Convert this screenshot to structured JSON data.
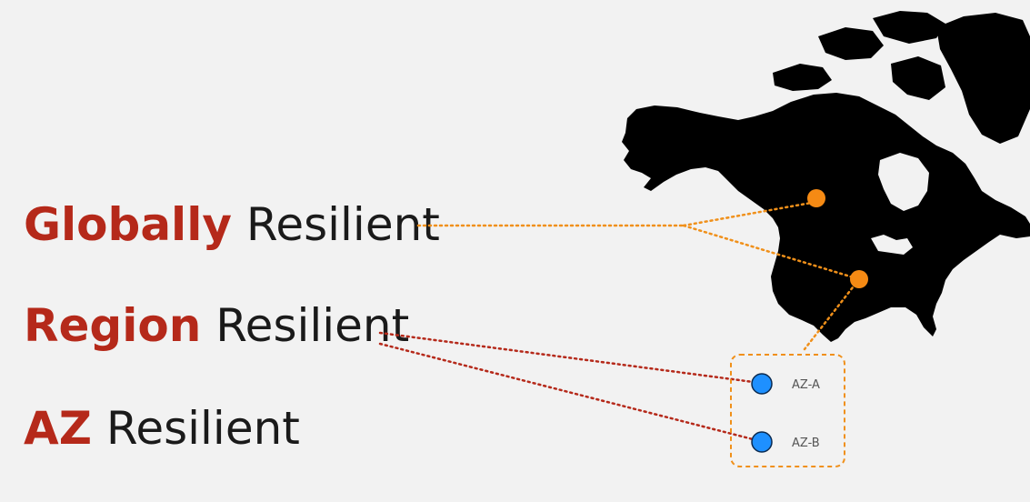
{
  "labels": {
    "global": {
      "bold": "Globally",
      "rest": " Resilient"
    },
    "region": {
      "bold": "Region",
      "rest": " Resilient"
    },
    "az": {
      "bold": "AZ",
      "rest": " Resilient"
    }
  },
  "az_box": {
    "zones": [
      "AZ-A",
      "AZ-B"
    ]
  },
  "colors": {
    "accent_red": "#b5291a",
    "connector_orange": "#f0901a",
    "region_dot": "#f58a14",
    "az_dot": "#1e90ff",
    "map_fill": "#000000",
    "background": "#f2f2f2"
  }
}
